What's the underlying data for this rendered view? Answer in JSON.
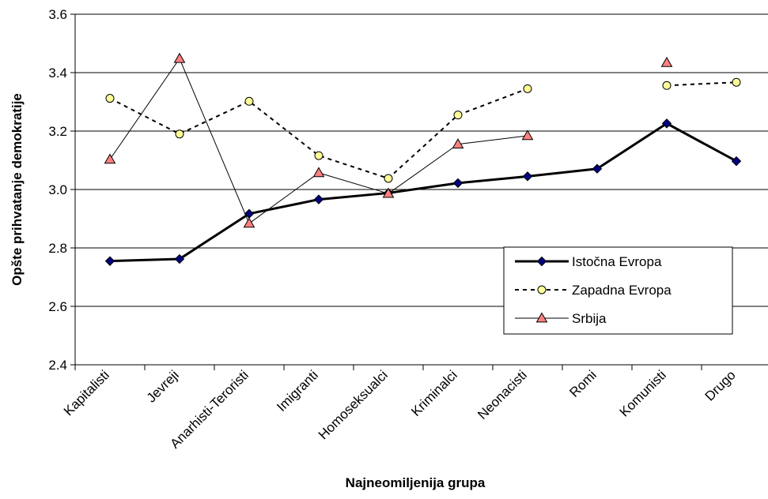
{
  "chart_data": {
    "type": "line",
    "title": "",
    "xlabel": "Najneomiljenija grupa",
    "ylabel": "Opšte prihvatanje demokratije",
    "ylim": [
      2.4,
      3.6
    ],
    "yticks": [
      "2.4",
      "2.6",
      "2.8",
      "3.0",
      "3.2",
      "3.4",
      "3.6"
    ],
    "grid": "horizontal",
    "legend_position": "bottom-right",
    "categories": [
      "Kapitalisti",
      "Jevreji",
      "Anarhisti-Teroristi",
      "Imigranti",
      "Homoseksualci",
      "Kriminalci",
      "Neonacisti",
      "Romi",
      "Komunisti",
      "Drugo"
    ],
    "series": [
      {
        "name": "Istočna Evropa",
        "values": [
          2.755,
          2.762,
          2.917,
          2.966,
          2.988,
          3.022,
          3.045,
          3.071,
          3.226,
          3.097
        ],
        "color": "#000080",
        "line": "solid-thick",
        "marker": "diamond"
      },
      {
        "name": "Zapadna Evropa",
        "values": [
          3.312,
          3.19,
          3.302,
          3.116,
          3.038,
          3.255,
          3.345,
          null,
          3.356,
          3.367
        ],
        "color": "#ffff99",
        "line": "dashed",
        "marker": "circle"
      },
      {
        "name": "Srbija",
        "values": [
          3.103,
          3.448,
          2.884,
          3.057,
          2.986,
          3.155,
          3.184,
          null,
          3.434,
          null
        ],
        "color": "#ff8080",
        "line": "solid-thin",
        "marker": "triangle"
      }
    ]
  }
}
